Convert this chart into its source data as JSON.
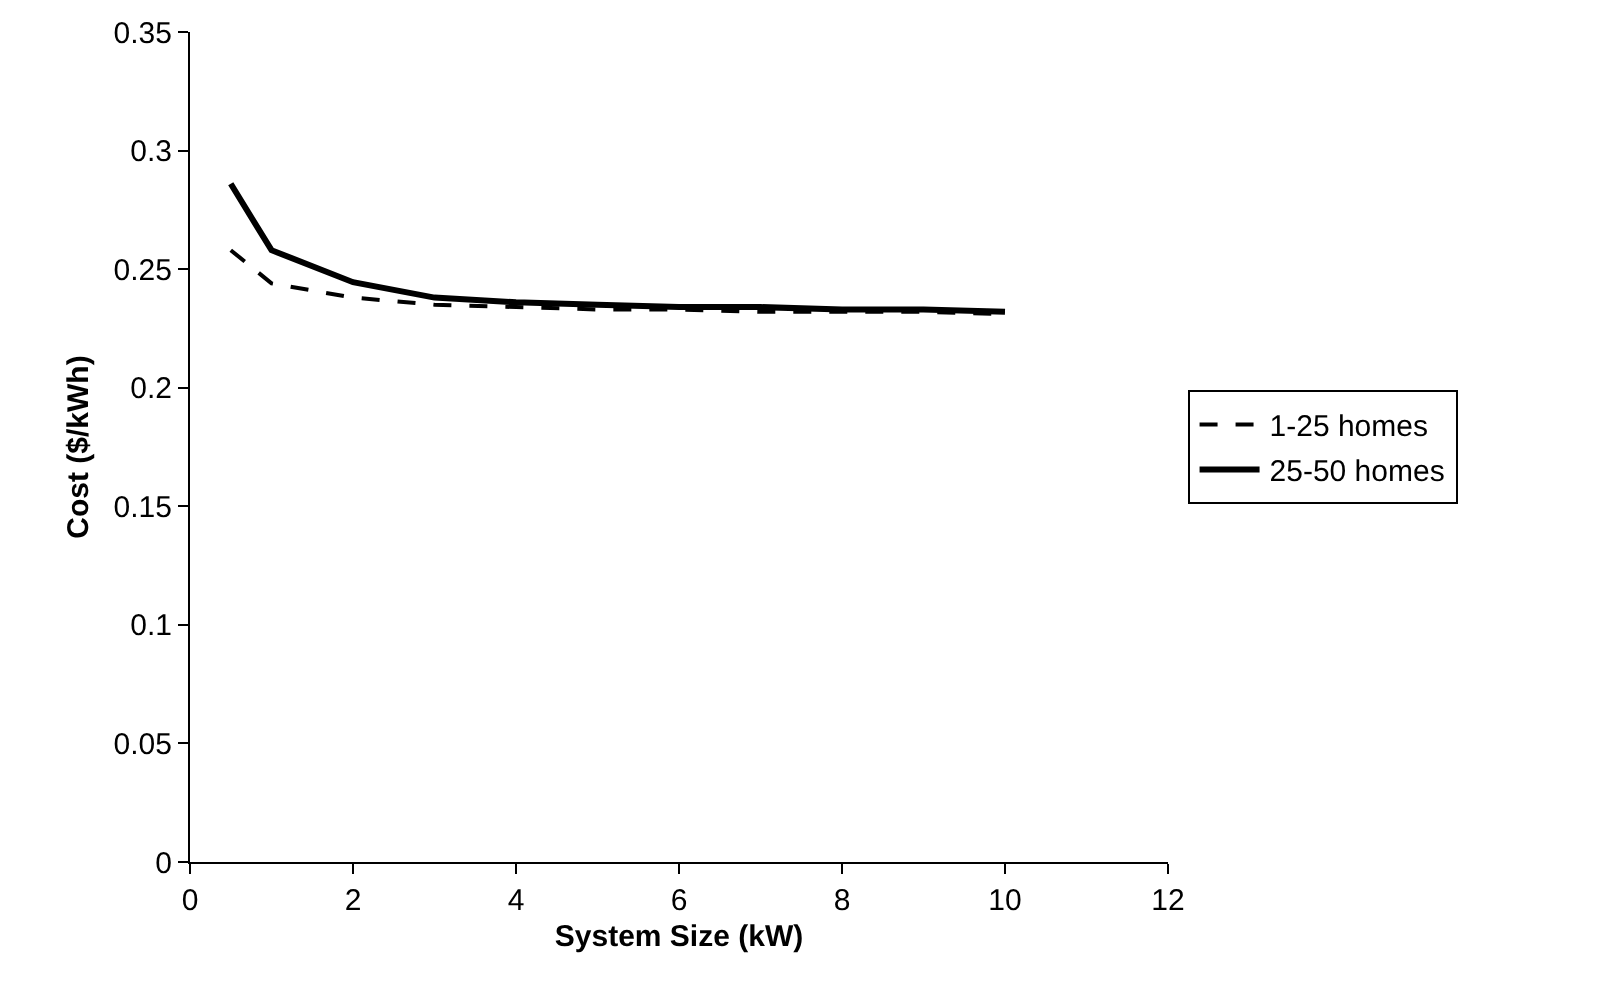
{
  "chart_data": {
    "type": "line",
    "xlabel": "System Size (kW)",
    "ylabel": "Cost ($/kWh)",
    "x": [
      0.5,
      1,
      2,
      3,
      4,
      5,
      6,
      7,
      8,
      9,
      10
    ],
    "series": [
      {
        "name": "1-25 homes",
        "color": "#000000",
        "line_style": "dashed",
        "values": [
          0.258,
          0.244,
          0.238,
          0.235,
          0.234,
          0.233,
          0.233,
          0.232,
          0.232,
          0.232,
          0.231
        ]
      },
      {
        "name": "25-50 homes",
        "color": "#000000",
        "line_style": "solid",
        "values": [
          0.286,
          0.258,
          0.2445,
          0.238,
          0.236,
          0.235,
          0.234,
          0.234,
          0.233,
          0.233,
          0.232
        ]
      }
    ],
    "xlim": [
      0,
      12
    ],
    "xticks": [
      0,
      2,
      4,
      6,
      8,
      10,
      12
    ],
    "ylim": [
      0,
      0.35
    ],
    "yticks": [
      0,
      0.05,
      0.1,
      0.15,
      0.2,
      0.25,
      0.3,
      0.35
    ],
    "grid": false,
    "legend": "right",
    "marker": "none"
  }
}
